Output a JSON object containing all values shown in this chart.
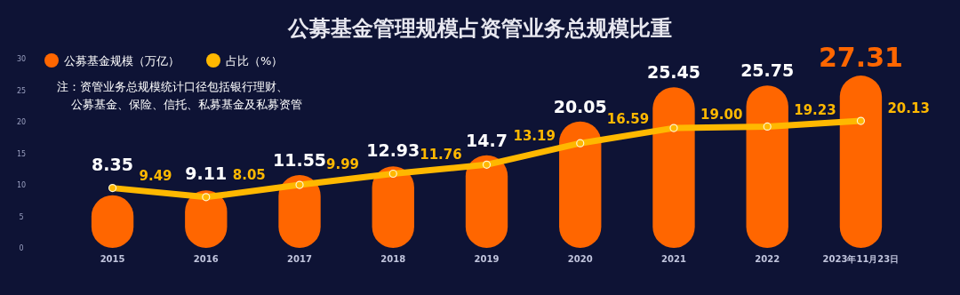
{
  "chart_data": {
    "type": "bar",
    "title": "公募基金管理规模占资管业务总规模比重",
    "categories": [
      "2015",
      "2016",
      "2017",
      "2018",
      "2019",
      "2020",
      "2021",
      "2022",
      "2023年11月23日"
    ],
    "series": [
      {
        "name": "公募基金规模（万亿）",
        "color": "#ff6600",
        "values": [
          8.35,
          9.11,
          11.55,
          12.93,
          14.7,
          20.05,
          25.45,
          25.75,
          27.31
        ]
      },
      {
        "name": "占比（%）",
        "type": "line",
        "color": "#ffb800",
        "values": [
          9.49,
          8.05,
          9.99,
          11.76,
          13.19,
          16.59,
          19.0,
          19.23,
          20.13
        ],
        "value_labels": [
          "9.49",
          "8.05",
          "9.99",
          "11.76",
          "13.19",
          "16.59",
          "19.00",
          "19.23",
          "20.13"
        ]
      }
    ],
    "ylim": [
      0,
      30
    ],
    "yticks": [
      0,
      5,
      10,
      15,
      20,
      25,
      30
    ],
    "tick_labels": "y",
    "data_labels": true,
    "marker": "circle",
    "legend": "top left",
    "grid": false,
    "annotations": [
      "注：资管业务总规模统计口径包括银行理财、",
      "公募基金、保险、信托、私募基金及私募资管"
    ]
  }
}
